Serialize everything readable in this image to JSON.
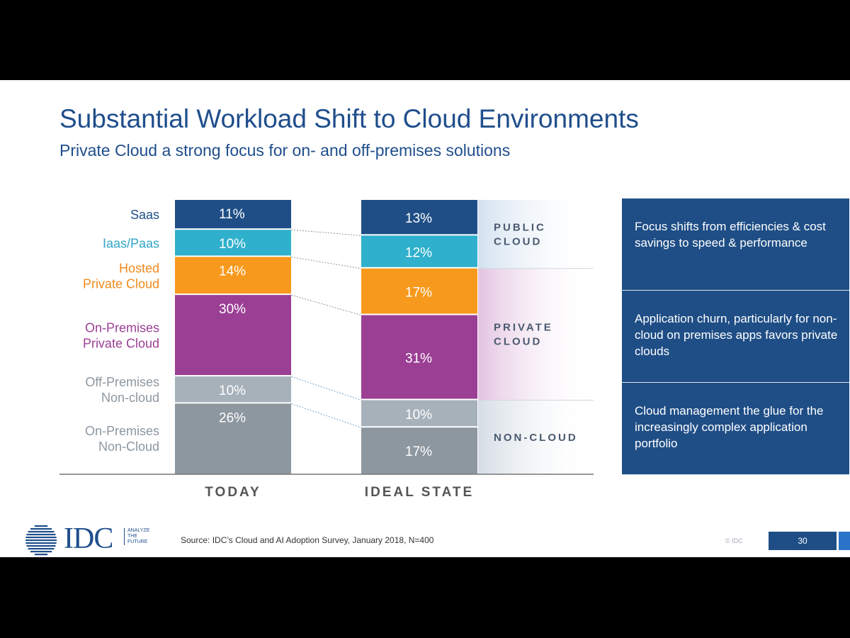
{
  "title": "Substantial Workload Shift to Cloud Environments",
  "subtitle": "Private Cloud a strong focus for on- and off-premises solutions",
  "chart_data": {
    "type": "bar",
    "stacked": true,
    "categories": [
      "TODAY",
      "IDEAL STATE"
    ],
    "series": [
      {
        "name": "Saas",
        "label_lines": [
          "Saas"
        ],
        "color": "#1f4e86",
        "values": [
          11,
          13
        ],
        "labels": [
          "11%",
          "13%"
        ]
      },
      {
        "name": "Iaas/Paas",
        "label_lines": [
          "Iaas/Paas"
        ],
        "color": "#2fb0cc",
        "values": [
          10,
          12
        ],
        "labels": [
          "10%",
          "12%"
        ]
      },
      {
        "name": "Hosted Private Cloud",
        "label_lines": [
          "Hosted",
          "Private Cloud"
        ],
        "color": "#f7991c",
        "values": [
          14,
          17
        ],
        "labels": [
          "14%",
          "17%"
        ]
      },
      {
        "name": "On-Premises Private Cloud",
        "label_lines": [
          "On-Premises",
          "Private Cloud"
        ],
        "color": "#9b3f95",
        "values": [
          30,
          31
        ],
        "labels": [
          "30%",
          "31%"
        ]
      },
      {
        "name": "Off-Premises Non-cloud",
        "label_lines": [
          "Off-Premises",
          "Non-cloud"
        ],
        "color": "#a6b1ba",
        "values": [
          10,
          10
        ],
        "labels": [
          "10%",
          "10%"
        ]
      },
      {
        "name": "On-Premises Non-Cloud",
        "label_lines": [
          "On-Premises",
          "Non-Cloud"
        ],
        "color": "#8d979f",
        "values": [
          26,
          17
        ],
        "labels": [
          "26%",
          "17%"
        ]
      }
    ],
    "series_label_colors": [
      "#1f4e86",
      "#2fa6c3",
      "#f08a1c",
      "#9b3f95",
      "#8d979f",
      "#8d979f"
    ],
    "groups": [
      {
        "lines": [
          "PUBLIC",
          "CLOUD"
        ],
        "series": [
          0,
          1
        ],
        "tint": "#d3e1ef"
      },
      {
        "lines": [
          "PRIVATE",
          "CLOUD"
        ],
        "series": [
          2,
          3
        ],
        "tint": "#e3c3e1"
      },
      {
        "lines": [
          "NON-CLOUD"
        ],
        "series": [
          4,
          5
        ],
        "tint": "#d5dde5"
      }
    ],
    "legend": "left"
  },
  "callouts": [
    "Focus shifts from efficiencies & cost savings to speed & performance",
    "Application churn, particularly for non-cloud on premises apps favors private clouds",
    "Cloud management the glue for the increasingly complex application portfolio"
  ],
  "footer": {
    "logo_text": "IDC",
    "tagline_lines": [
      "ANALYZE",
      "THE",
      "FUTURE"
    ],
    "source": "Source: IDC’s Cloud and AI Adoption Survey, January 2018, N=400",
    "copyright": "© IDC",
    "page_number": "30"
  },
  "colors": {
    "title": "#1f4e8c",
    "callout_bg": "#1f4e86"
  }
}
